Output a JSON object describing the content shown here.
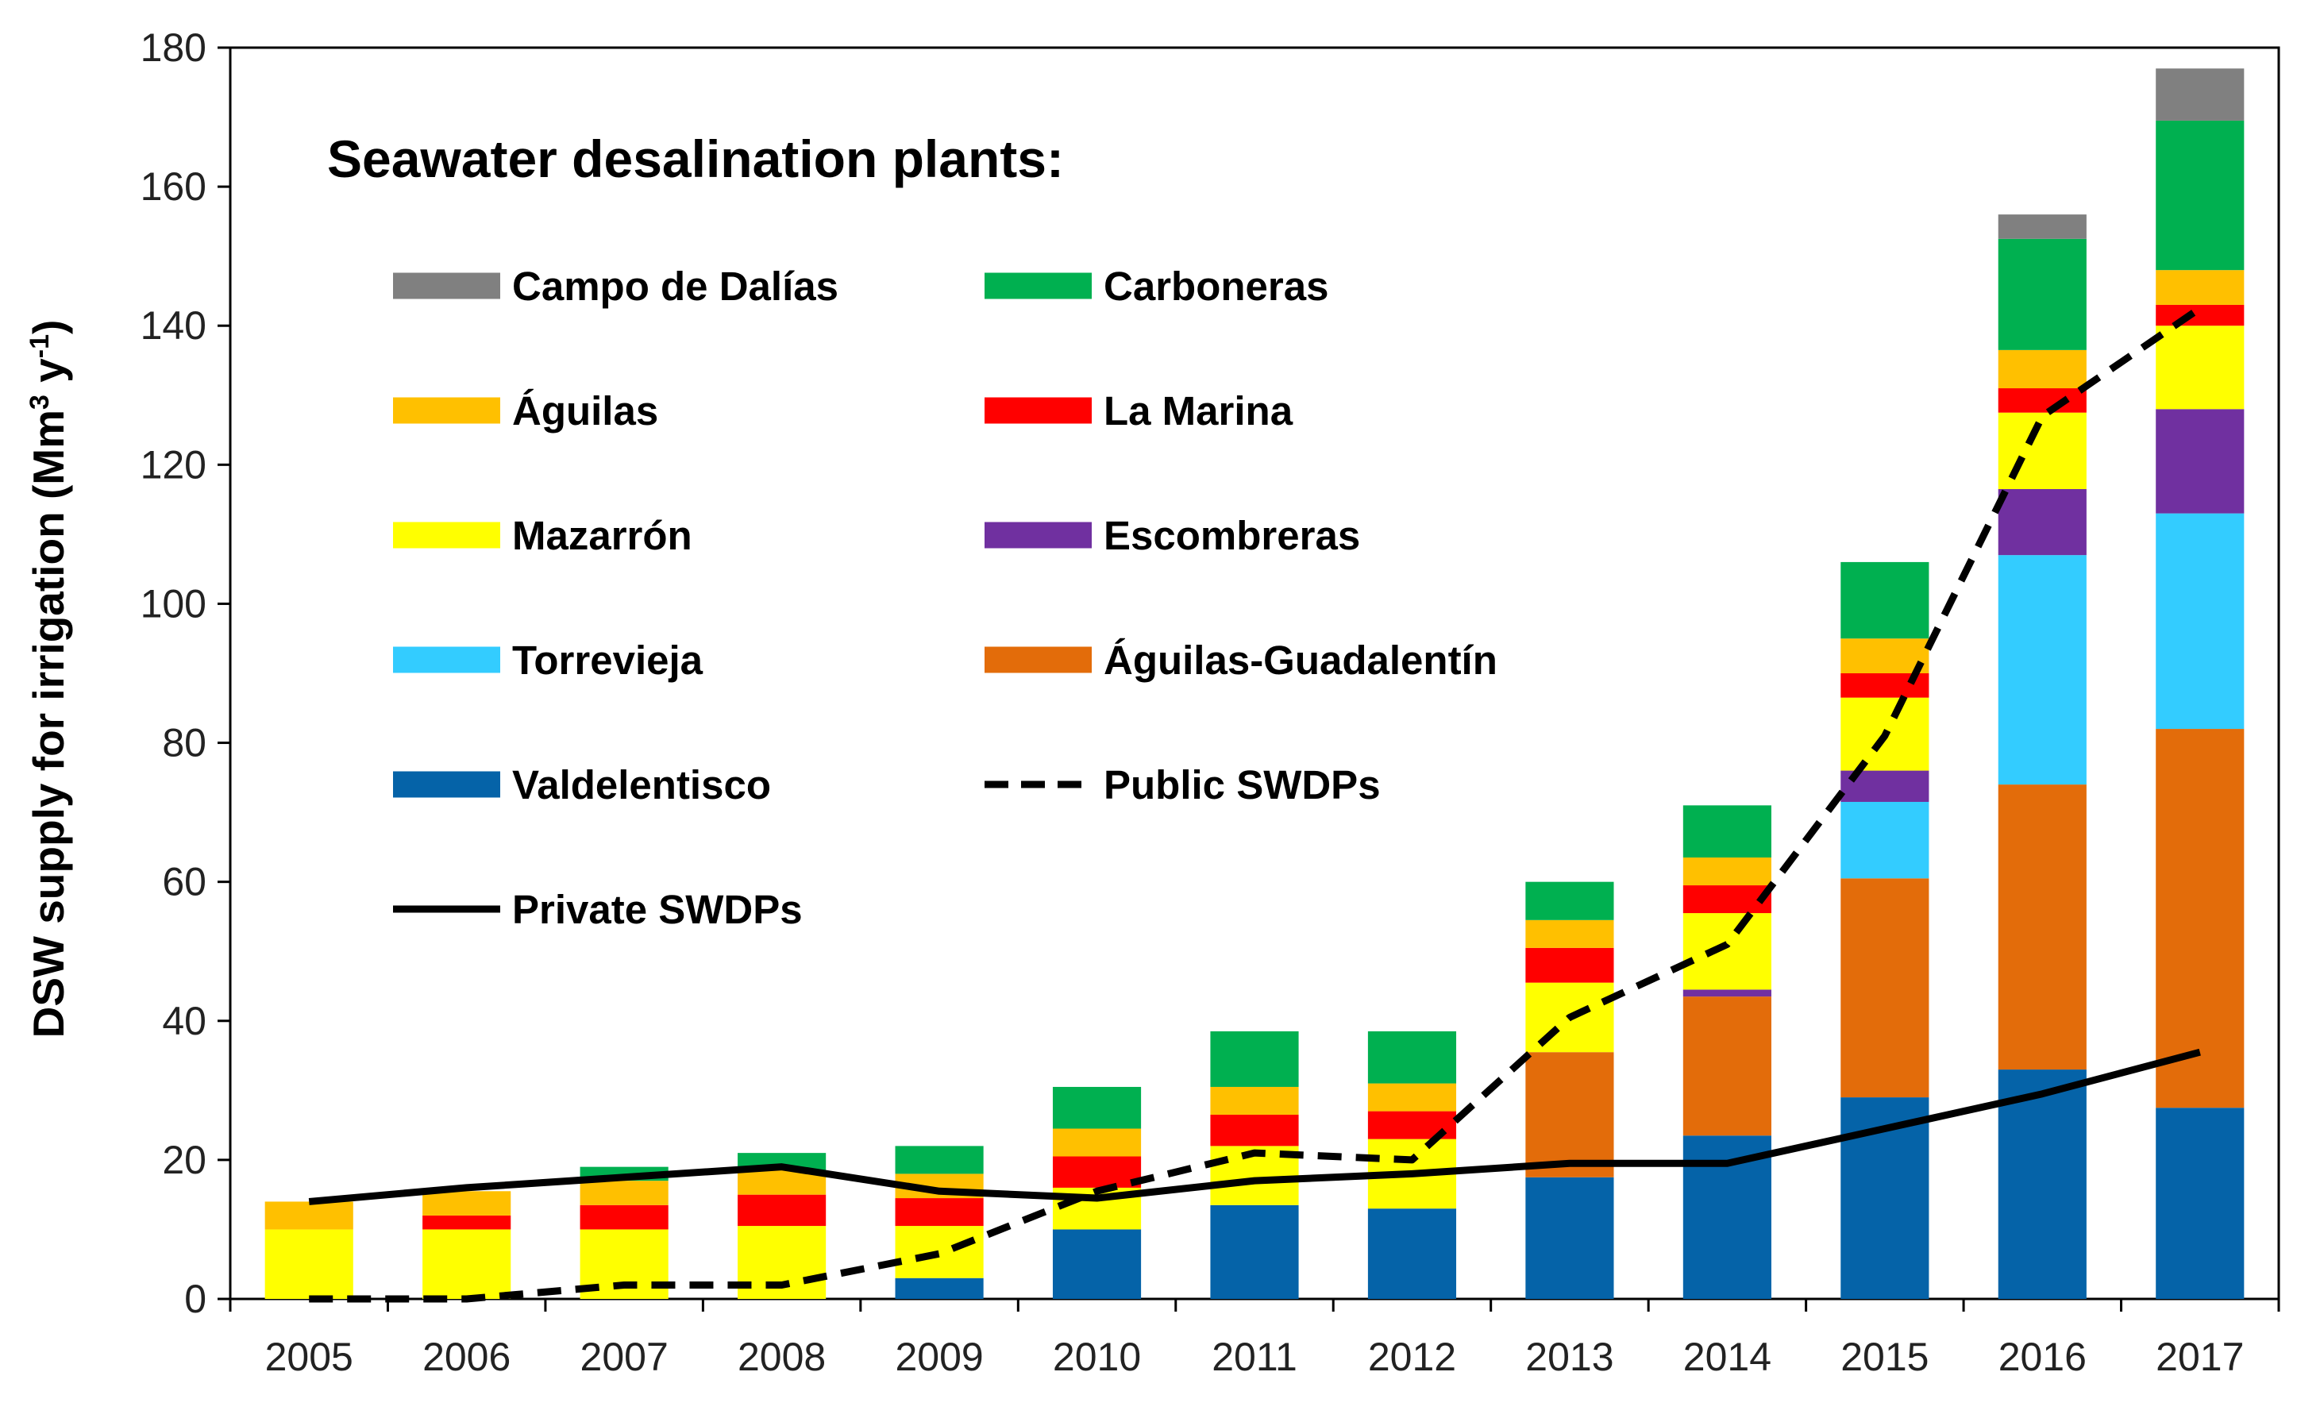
{
  "chart_data": {
    "type": "bar",
    "stacked": true,
    "title": "",
    "legend_title": "Seawater desalination plants:",
    "ylabel": "DSW supply for irrigation (Mm",
    "ylabel_sup1": "3",
    "ylabel_mid": " y",
    "ylabel_sup2": "-1",
    "ylabel_end": ")",
    "xlabel": "",
    "ylim": [
      0,
      180
    ],
    "yticks": [
      0,
      20,
      40,
      60,
      80,
      100,
      120,
      140,
      160,
      180
    ],
    "categories": [
      "2005",
      "2006",
      "2007",
      "2008",
      "2009",
      "2010",
      "2011",
      "2012",
      "2013",
      "2014",
      "2015",
      "2016",
      "2017"
    ],
    "legend_placement": "top-left inside",
    "series": [
      {
        "name": "Valdelentisco",
        "color": "#0563A8",
        "values": [
          0,
          0,
          0,
          0,
          3,
          10,
          13.5,
          13,
          17.5,
          23.5,
          29,
          33,
          27.5
        ]
      },
      {
        "name": "Águilas-Guadalentín",
        "color": "#E36C0A",
        "values": [
          0,
          0,
          0,
          0,
          0,
          0,
          0,
          0,
          18,
          20,
          31.5,
          41,
          54.5
        ]
      },
      {
        "name": "Torrevieja",
        "color": "#33CCFF",
        "values": [
          0,
          0,
          0,
          0,
          0,
          0,
          0,
          0,
          0,
          0,
          11,
          33,
          31
        ]
      },
      {
        "name": "Escombreras",
        "color": "#7030A0",
        "values": [
          0,
          0,
          0,
          0,
          0,
          0,
          0,
          0,
          0,
          1,
          4.5,
          9.5,
          15
        ]
      },
      {
        "name": "Mazarrón",
        "color": "#FFFF00",
        "values": [
          10,
          10,
          10,
          10.5,
          7.5,
          6,
          8.5,
          10,
          10,
          11,
          10.5,
          11,
          12
        ]
      },
      {
        "name": "La Marina",
        "color": "#FF0000",
        "values": [
          0,
          2,
          3.5,
          4.5,
          4,
          4.5,
          4.5,
          4,
          5,
          4,
          3.5,
          3.5,
          3
        ]
      },
      {
        "name": "Águilas",
        "color": "#FFC000",
        "values": [
          4,
          3.5,
          3.5,
          3.5,
          3.5,
          4,
          4,
          4,
          4,
          4,
          5,
          5.5,
          5
        ]
      },
      {
        "name": "Carboneras",
        "color": "#00B050",
        "values": [
          0,
          0,
          2,
          2.5,
          4,
          6,
          8,
          7.5,
          5.5,
          7.5,
          11,
          16,
          21.5
        ]
      },
      {
        "name": "Campo de Dalías",
        "color": "#808080",
        "values": [
          0,
          0,
          0,
          0,
          0,
          0,
          0,
          0,
          0,
          0,
          0,
          3.5,
          7.5
        ]
      }
    ],
    "lines": [
      {
        "name": "Public SWDPs",
        "style": "dashed",
        "color": "#000000",
        "values": [
          0,
          0,
          2,
          2,
          6.5,
          15.5,
          21,
          20,
          40.5,
          51,
          81,
          127,
          142.5
        ]
      },
      {
        "name": "Private SWDPs",
        "style": "solid",
        "color": "#000000",
        "values": [
          14,
          16,
          17.5,
          19,
          15.5,
          14.5,
          17,
          18,
          19.5,
          19.5,
          24.5,
          29.5,
          35.5
        ]
      }
    ],
    "legend_entries": [
      {
        "name": "Campo de Dalías",
        "kind": "box",
        "color": "#808080"
      },
      {
        "name": "Carboneras",
        "kind": "box",
        "color": "#00B050"
      },
      {
        "name": "Águilas",
        "kind": "box",
        "color": "#FFC000"
      },
      {
        "name": "La Marina",
        "kind": "box",
        "color": "#FF0000"
      },
      {
        "name": "Mazarrón",
        "kind": "box",
        "color": "#FFFF00"
      },
      {
        "name": "Escombreras",
        "kind": "box",
        "color": "#7030A0"
      },
      {
        "name": "Torrevieja",
        "kind": "box",
        "color": "#33CCFF"
      },
      {
        "name": "Águilas-Guadalentín",
        "kind": "box",
        "color": "#E36C0A"
      },
      {
        "name": "Valdelentisco",
        "kind": "box",
        "color": "#0563A8"
      },
      {
        "name": "Public SWDPs",
        "kind": "dashed",
        "color": "#000000"
      },
      {
        "name": "Private SWDPs",
        "kind": "solid",
        "color": "#000000"
      }
    ]
  }
}
